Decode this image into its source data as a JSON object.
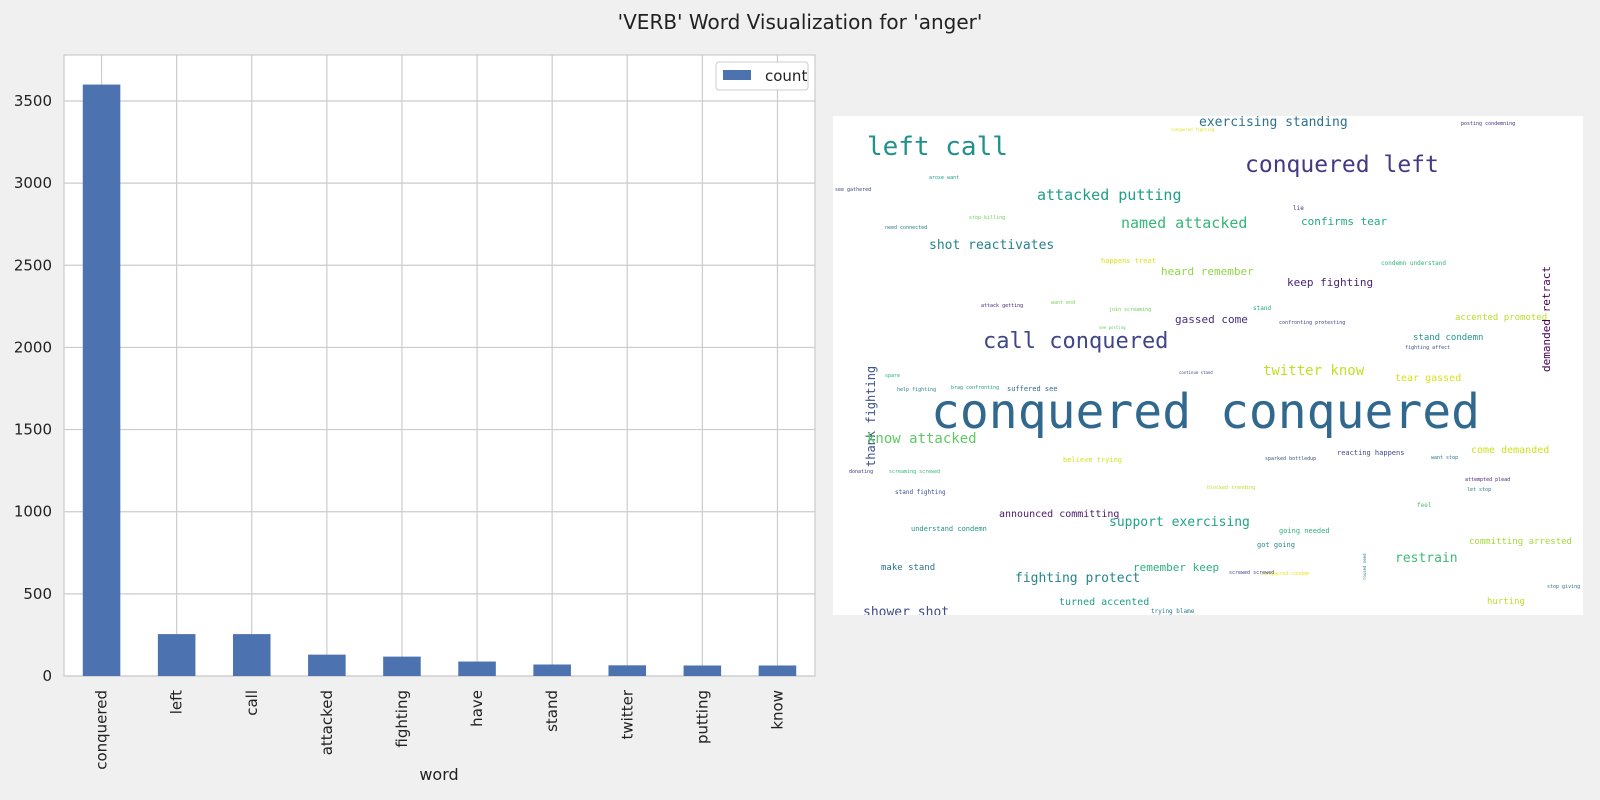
{
  "title": "'VERB' Word Visualization for 'anger'",
  "chart_data": [
    {
      "type": "bar",
      "title": "",
      "xlabel": "word",
      "ylabel": "",
      "categories": [
        "conquered",
        "left",
        "call",
        "attacked",
        "fighting",
        "have",
        "stand",
        "twitter",
        "putting",
        "know"
      ],
      "series": [
        {
          "name": "count",
          "values": [
            3600,
            255,
            255,
            130,
            118,
            88,
            70,
            65,
            64,
            64
          ]
        }
      ],
      "ylim": [
        0,
        3780
      ],
      "yticks": [
        0,
        500,
        1000,
        1500,
        2000,
        2500,
        3000,
        3500
      ],
      "grid": true,
      "legend_position": "top-right",
      "bar_color": "#4c72b0"
    },
    {
      "type": "wordcloud",
      "background": "#ffffff",
      "words": [
        {
          "text": "conquered conquered",
          "color": "#31688e"
        },
        {
          "text": "left call",
          "color": "#21918c"
        },
        {
          "text": "conquered left",
          "color": "#443983"
        },
        {
          "text": "call conquered",
          "color": "#404688"
        },
        {
          "text": "exercising standing",
          "color": "#2c728e"
        },
        {
          "text": "attacked putting",
          "color": "#1f9e89"
        },
        {
          "text": "named attacked",
          "color": "#35b779"
        },
        {
          "text": "shot reactivates",
          "color": "#26828e"
        },
        {
          "text": "confirms tear",
          "color": "#22a884"
        },
        {
          "text": "heard remember",
          "color": "#90d743"
        },
        {
          "text": "keep fighting",
          "color": "#482475"
        },
        {
          "text": "thank fighting",
          "color": "#3b528b"
        },
        {
          "text": "demanded retract",
          "color": "#440154"
        },
        {
          "text": "twitter know",
          "color": "#c2df23"
        },
        {
          "text": "tear gassed",
          "color": "#d8e219"
        },
        {
          "text": "gassed come",
          "color": "#472d7b"
        },
        {
          "text": "stand condemn",
          "color": "#1f978b"
        },
        {
          "text": "accented promoted",
          "color": "#b5de2b"
        },
        {
          "text": "know attacked",
          "color": "#5ec962"
        },
        {
          "text": "come demanded",
          "color": "#cde11d"
        },
        {
          "text": "support exercising",
          "color": "#20a386"
        },
        {
          "text": "announced committing",
          "color": "#48186a"
        },
        {
          "text": "fighting protect",
          "color": "#25858e"
        },
        {
          "text": "remember keep",
          "color": "#2ab07f"
        },
        {
          "text": "restrain",
          "color": "#3dbc74"
        },
        {
          "text": "shower shot",
          "color": "#3e4a89"
        },
        {
          "text": "make stand",
          "color": "#2d708e"
        },
        {
          "text": "turned accented",
          "color": "#1fa088"
        },
        {
          "text": "committing arrested",
          "color": "#a5db36"
        },
        {
          "text": "hurting",
          "color": "#bddf26"
        },
        {
          "text": "reacting happens",
          "color": "#3f4889"
        },
        {
          "text": "suffered see",
          "color": "#31688e"
        },
        {
          "text": "happens treat",
          "color": "#dae319"
        },
        {
          "text": "understand condemn",
          "color": "#21918c"
        },
        {
          "text": "going needed",
          "color": "#2fb47c"
        },
        {
          "text": "got going",
          "color": "#23898e"
        },
        {
          "text": "believe trying",
          "color": "#d5e21a"
        },
        {
          "text": "stand fighting",
          "color": "#3b528b"
        },
        {
          "text": "trying blame",
          "color": "#287c8e"
        },
        {
          "text": "posting condemning",
          "color": "#472f7d"
        },
        {
          "text": "arose want",
          "color": "#1e9b8a"
        },
        {
          "text": "see gathered",
          "color": "#3e4989"
        },
        {
          "text": "stop killing",
          "color": "#6ccd5a"
        },
        {
          "text": "need connected",
          "color": "#29798e"
        },
        {
          "text": "lie",
          "color": "#46317e"
        },
        {
          "text": "condemn understand",
          "color": "#2fb47c"
        },
        {
          "text": "stand",
          "color": "#24aa83"
        },
        {
          "text": "want end",
          "color": "#7ad151"
        },
        {
          "text": "attack getting",
          "color": "#482878"
        },
        {
          "text": "join screaming",
          "color": "#70cf57"
        },
        {
          "text": "confronting protesting",
          "color": "#414487"
        },
        {
          "text": "fighting affect",
          "color": "#3b528b"
        },
        {
          "text": "spare",
          "color": "#27ad81"
        },
        {
          "text": "help fighting",
          "color": "#26828e"
        },
        {
          "text": "brag confronting",
          "color": "#1f9a8a"
        },
        {
          "text": "continue stand",
          "color": "#3e4a89"
        },
        {
          "text": "donating",
          "color": "#443983"
        },
        {
          "text": "screaming screwed",
          "color": "#35b779"
        },
        {
          "text": "sparked bottledup",
          "color": "#3a548c"
        },
        {
          "text": "want stop",
          "color": "#2a778e"
        },
        {
          "text": "blocked trending",
          "color": "#bade28"
        },
        {
          "text": "attempted plead",
          "color": "#481f70"
        },
        {
          "text": "let stop",
          "color": "#2c738e"
        },
        {
          "text": "feel",
          "color": "#4ac16d"
        },
        {
          "text": "conquered condem",
          "color": "#f1e51d"
        },
        {
          "text": "screwed screwed",
          "color": "#3f4788"
        },
        {
          "text": "stop giving",
          "color": "#2c728e"
        },
        {
          "text": "conquered fighting",
          "color": "#e2e418"
        },
        {
          "text": "see posting",
          "color": "#65cb5e"
        },
        {
          "text": "roused need",
          "color": "#2a788e"
        }
      ]
    }
  ]
}
